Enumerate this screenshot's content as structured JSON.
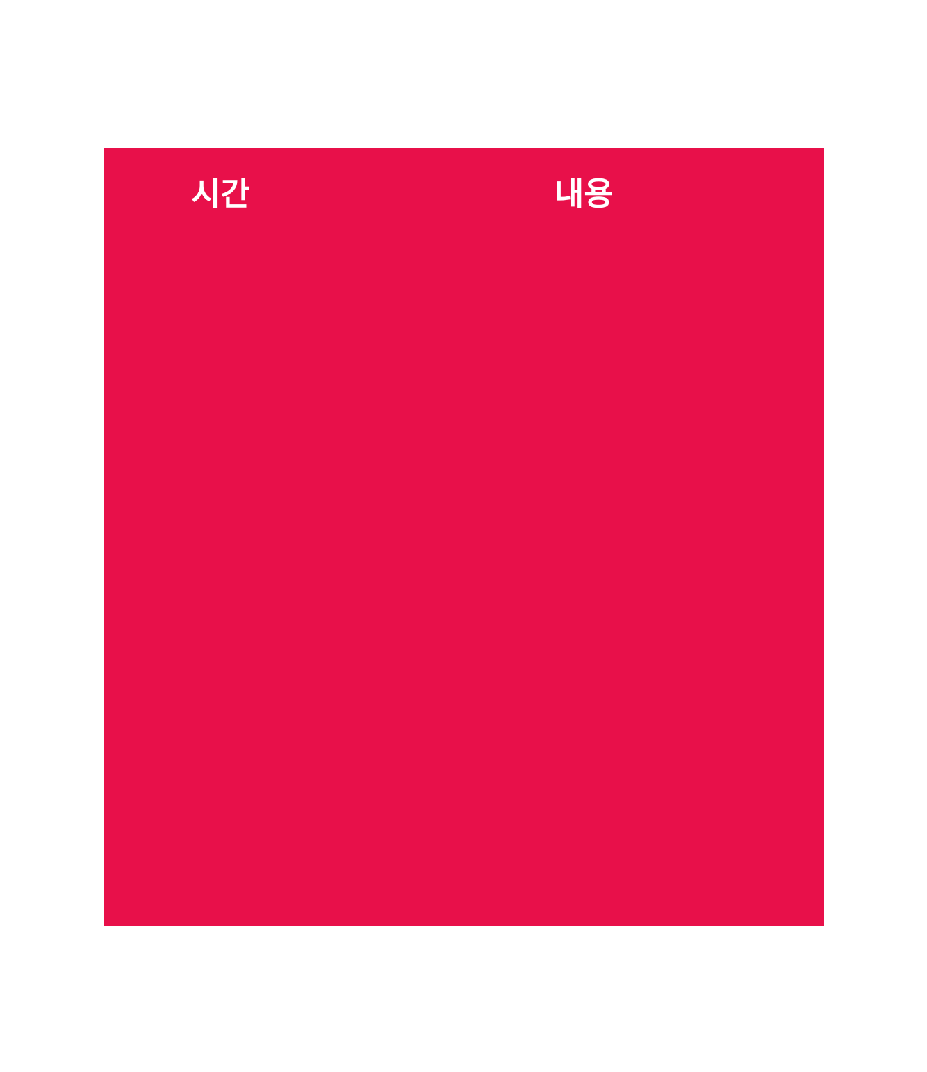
{
  "page": {
    "background_color": "#ffffff"
  },
  "schedule_table": {
    "background_color": "#e8104a",
    "header_text_color": "#ffffff",
    "columns": [
      {
        "label": "시간"
      },
      {
        "label": "내용"
      }
    ]
  }
}
